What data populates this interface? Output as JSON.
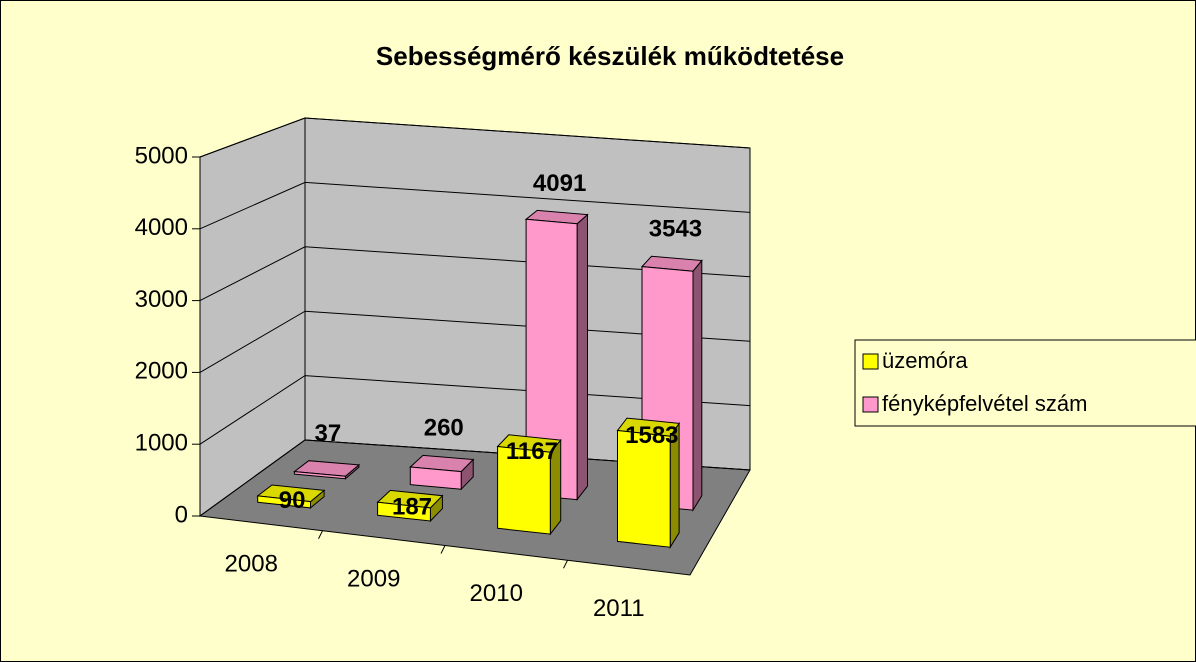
{
  "chart_data": {
    "type": "bar3d",
    "title": "Sebességmérő készülék működtetése",
    "categories": [
      "2008",
      "2009",
      "2010",
      "2011"
    ],
    "series": [
      {
        "name": "üzemóra",
        "color": "#ffff00",
        "values": [
          90,
          187,
          1167,
          1583
        ]
      },
      {
        "name": "fényképfelvétel szám",
        "color": "#ff99cc",
        "values": [
          37,
          260,
          4091,
          3543
        ]
      }
    ],
    "ylim": [
      0,
      5000
    ],
    "yticks": [
      0,
      1000,
      2000,
      3000,
      4000,
      5000
    ],
    "grid": true,
    "legend": "right"
  }
}
